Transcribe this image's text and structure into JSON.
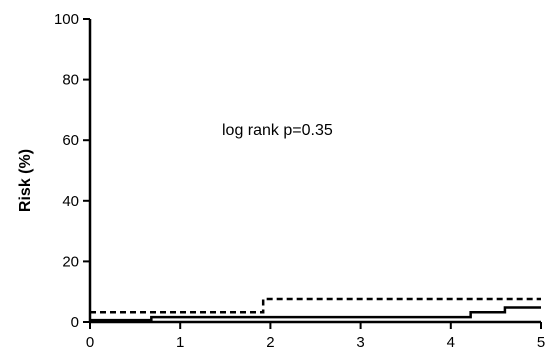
{
  "chart_data": {
    "type": "line",
    "title": "",
    "xlabel": "",
    "ylabel": "Risk (%)",
    "xlim": [
      0,
      5
    ],
    "ylim": [
      0,
      100
    ],
    "x_ticks": [
      "0",
      "1",
      "2",
      "3",
      "4",
      "5"
    ],
    "y_ticks": [
      "0",
      "20",
      "40",
      "60",
      "80",
      "100"
    ],
    "grid": false,
    "legend": "none",
    "annotation": "log rank p=0.35",
    "series": [
      {
        "style": "solid",
        "color": "#000000",
        "step": true,
        "points": [
          [
            0,
            0.6
          ],
          [
            0.68,
            0.6
          ],
          [
            0.68,
            1.6
          ],
          [
            4.22,
            1.6
          ],
          [
            4.22,
            3.2
          ],
          [
            4.6,
            3.2
          ],
          [
            4.6,
            4.8
          ],
          [
            5.0,
            4.8
          ]
        ]
      },
      {
        "style": "dashed",
        "color": "#000000",
        "step": true,
        "points": [
          [
            0,
            3.2
          ],
          [
            1.92,
            3.2
          ],
          [
            1.92,
            7.6
          ],
          [
            5.0,
            7.6
          ]
        ]
      }
    ]
  }
}
